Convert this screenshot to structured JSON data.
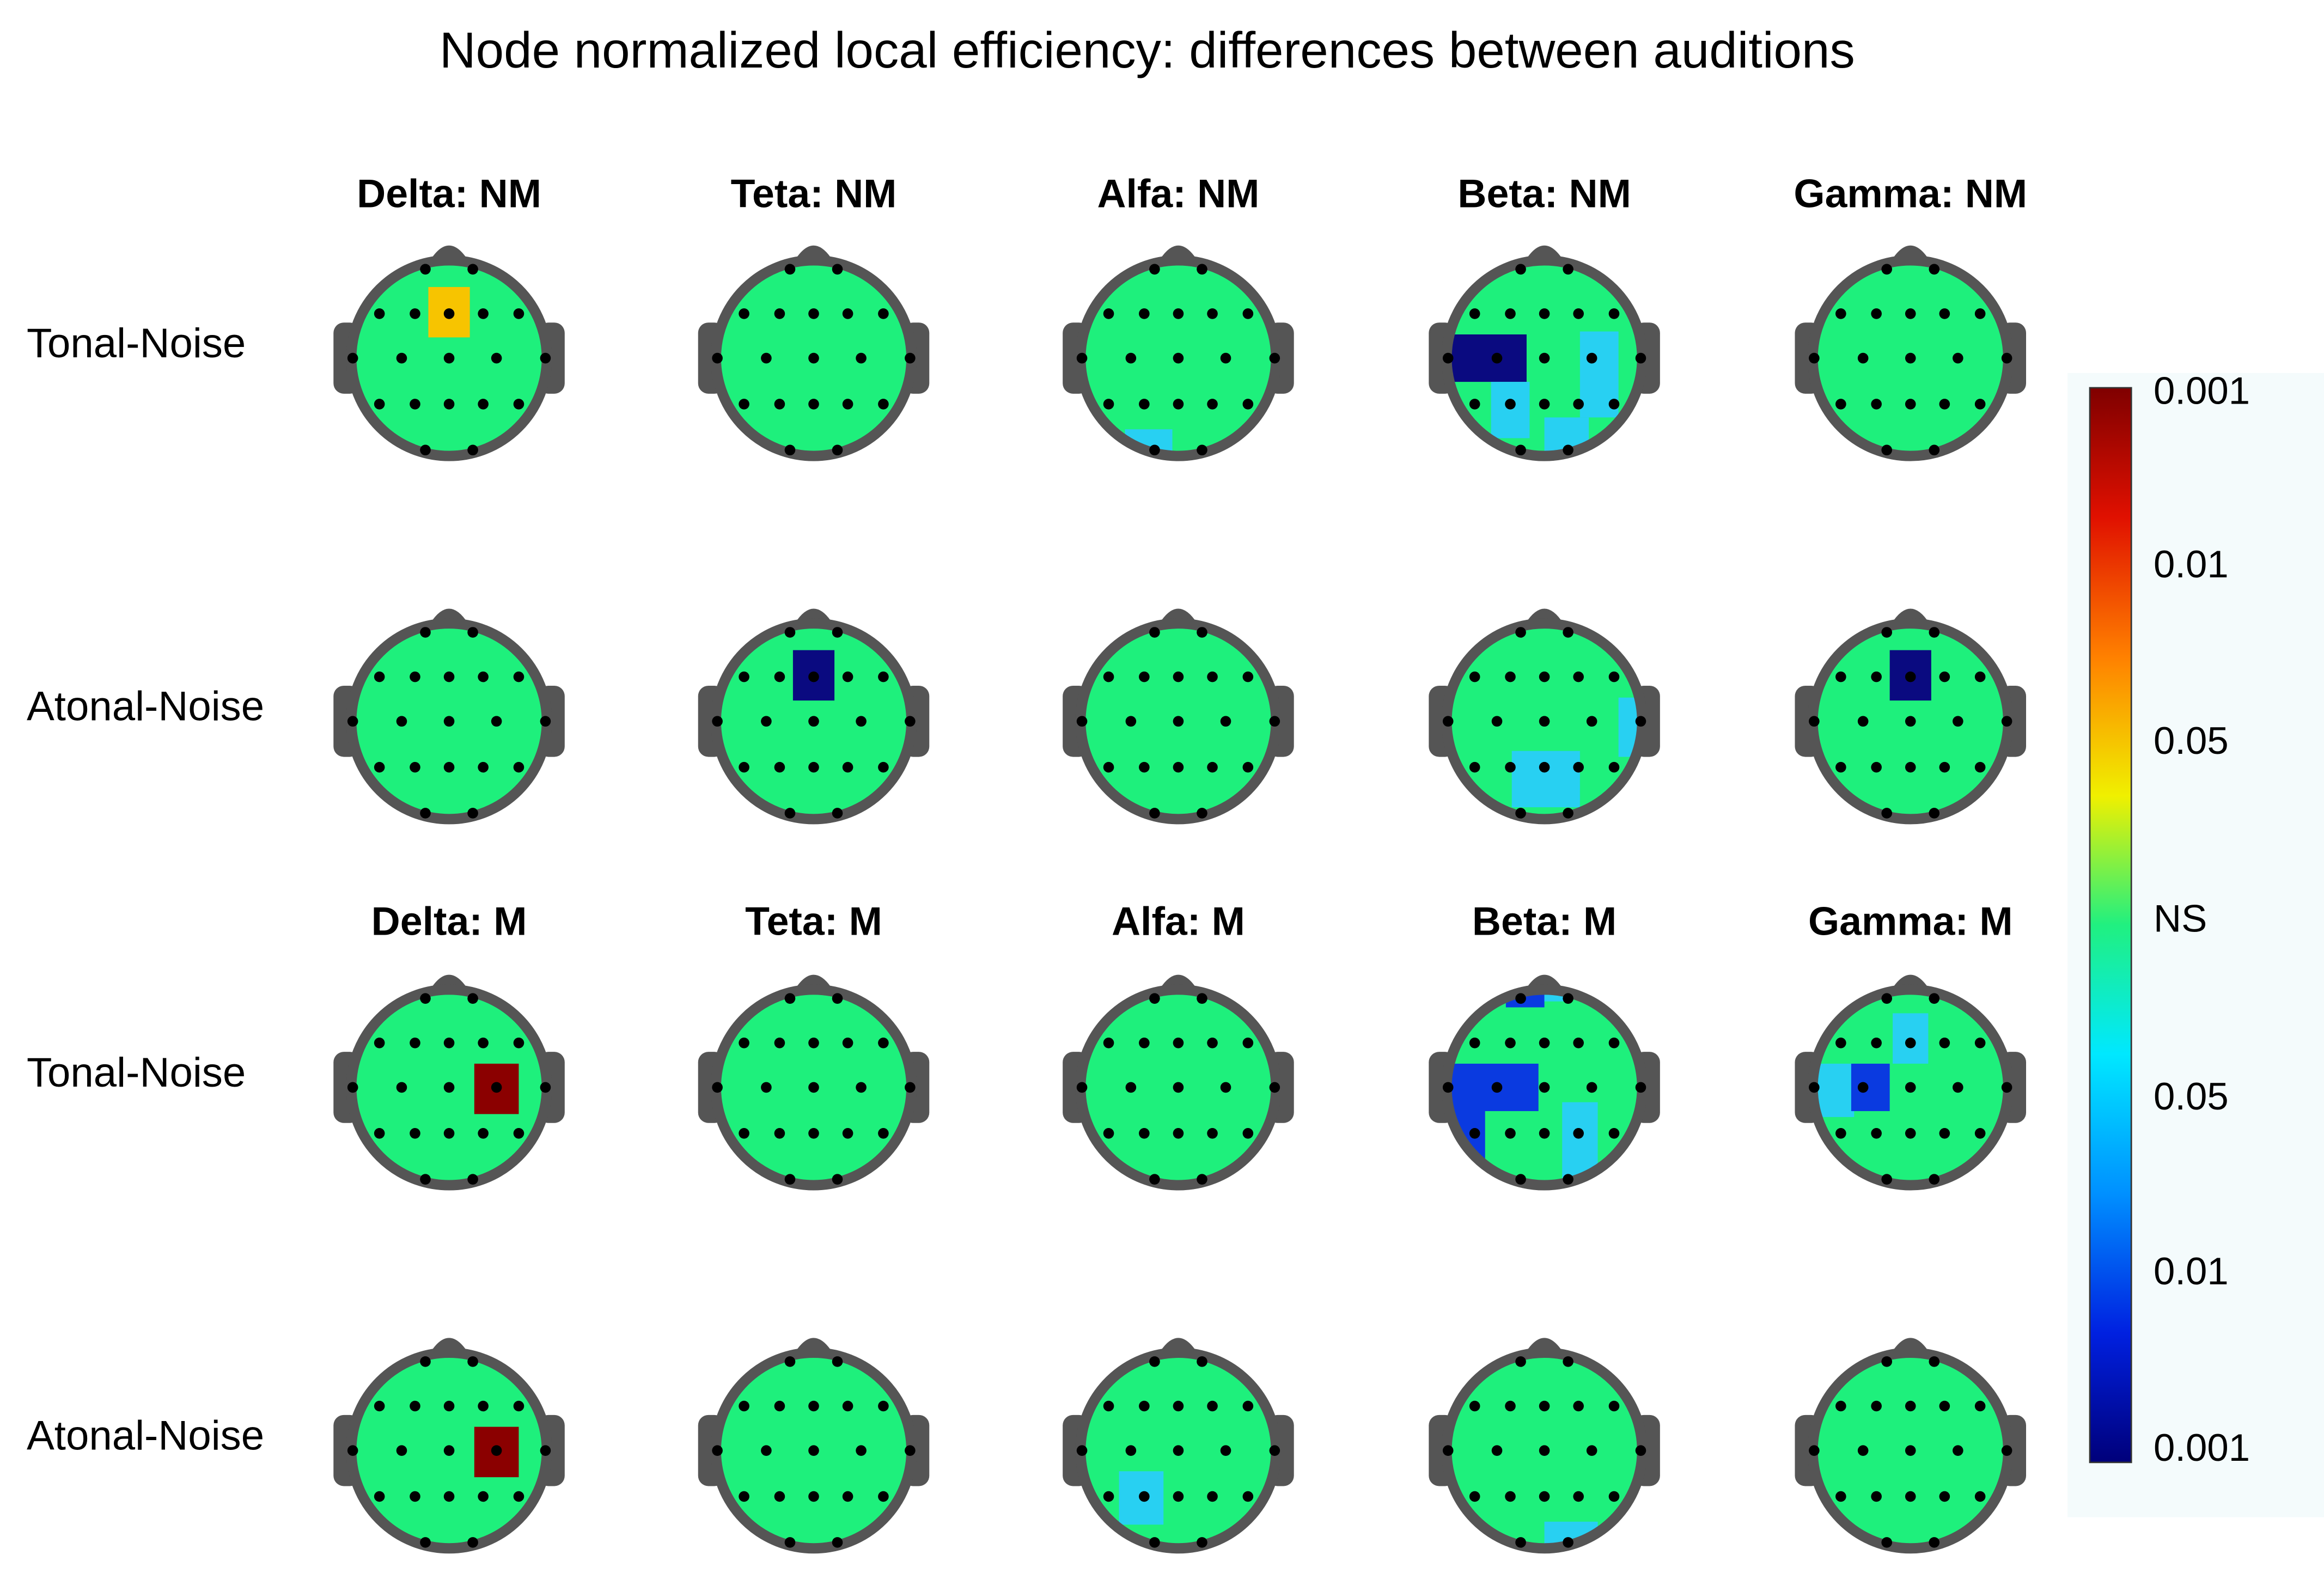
{
  "title": "Node normalized local efficiency: differences between auditions",
  "sections": [
    {
      "columns": [
        "Delta: NM",
        "Teta: NM",
        "Alfa: NM",
        "Beta: NM",
        "Gamma: NM"
      ]
    },
    {
      "columns": [
        "Delta: M",
        "Teta: M",
        "Alfa: M",
        "Beta: M",
        "Gamma: M"
      ]
    }
  ],
  "rows": [
    "Tonal-Noise",
    "Atonal-Noise",
    "Tonal-Noise",
    "Atonal-Noise"
  ],
  "colorbar": {
    "labels": [
      "0.001",
      "0.01",
      "0.05",
      "NS",
      "0.05",
      "0.01",
      "0.001"
    ]
  }
}
